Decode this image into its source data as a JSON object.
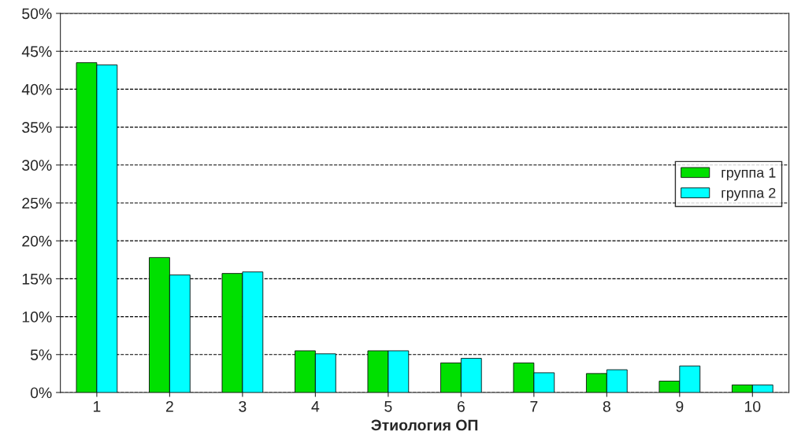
{
  "chart_data": {
    "type": "bar",
    "xlabel": "Этиология ОП",
    "categories": [
      "1",
      "2",
      "3",
      "4",
      "5",
      "6",
      "7",
      "8",
      "9",
      "10"
    ],
    "series": [
      {
        "name": "группа 1",
        "color": "#00e000",
        "values": [
          43.5,
          17.8,
          15.7,
          5.5,
          5.5,
          3.9,
          3.9,
          2.5,
          1.5,
          1.0
        ]
      },
      {
        "name": "группа 2",
        "color": "#00ffff",
        "values": [
          43.2,
          15.5,
          15.9,
          5.1,
          5.5,
          4.5,
          2.6,
          3.0,
          3.5,
          1.0
        ]
      }
    ],
    "ylim": [
      0,
      50
    ],
    "yticks": [
      {
        "value": 0,
        "label": "0%"
      },
      {
        "value": 5,
        "label": "5%"
      },
      {
        "value": 10,
        "label": "10%"
      },
      {
        "value": 15,
        "label": "15%"
      },
      {
        "value": 20,
        "label": "20%"
      },
      {
        "value": 25,
        "label": "25%"
      },
      {
        "value": 30,
        "label": "30%"
      },
      {
        "value": 35,
        "label": "35%"
      },
      {
        "value": 40,
        "label": "40%"
      },
      {
        "value": 45,
        "label": "45%"
      },
      {
        "value": 50,
        "label": "50%"
      }
    ],
    "grid": "y",
    "legend": "right"
  }
}
